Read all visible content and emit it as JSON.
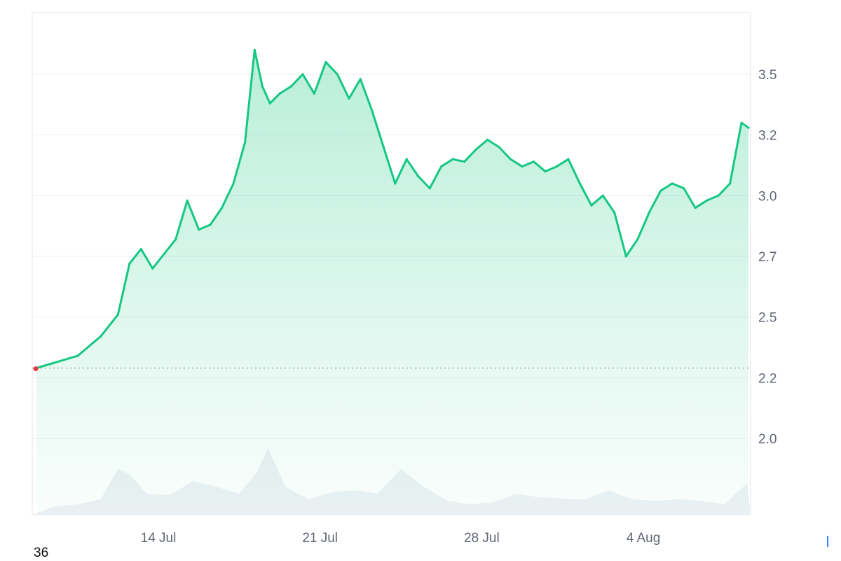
{
  "chart_data": {
    "type": "area",
    "title": "",
    "xlabel": "",
    "ylabel": "",
    "x_range": [
      "2024-07-09",
      "2024-08-08"
    ],
    "ylim": [
      1.75,
      3.75
    ],
    "y_ticks": [
      "2.0",
      "2.2",
      "2.5",
      "2.7",
      "3.0",
      "3.2",
      "3.5"
    ],
    "y_tick_values": [
      2.0,
      2.25,
      2.5,
      2.75,
      3.0,
      3.25,
      3.5
    ],
    "x_ticks": [
      {
        "label": "14 Jul",
        "date": "2024-07-14"
      },
      {
        "label": "21 Jul",
        "date": "2024-07-21"
      },
      {
        "label": "28 Jul",
        "date": "2024-07-28"
      },
      {
        "label": "4 Aug",
        "date": "2024-08-04"
      }
    ],
    "baseline_value": 2.29,
    "grid": true,
    "legend": "none",
    "price_series": {
      "x": [
        "2024-07-09",
        "2024-07-10",
        "2024-07-11",
        "2024-07-12",
        "2024-07-12",
        "2024-07-13",
        "2024-07-13",
        "2024-07-14",
        "2024-07-14",
        "2024-07-15",
        "2024-07-15",
        "2024-07-16",
        "2024-07-16",
        "2024-07-17",
        "2024-07-17",
        "2024-07-18",
        "2024-07-18",
        "2024-07-18",
        "2024-07-19",
        "2024-07-19",
        "2024-07-20",
        "2024-07-20",
        "2024-07-21",
        "2024-07-21",
        "2024-07-22",
        "2024-07-22",
        "2024-07-23",
        "2024-07-23",
        "2024-07-24",
        "2024-07-24",
        "2024-07-25",
        "2024-07-25",
        "2024-07-26",
        "2024-07-26",
        "2024-07-27",
        "2024-07-27",
        "2024-07-28",
        "2024-07-28",
        "2024-07-29",
        "2024-07-29",
        "2024-07-30",
        "2024-07-30",
        "2024-07-31",
        "2024-07-31",
        "2024-08-01",
        "2024-08-01",
        "2024-08-02",
        "2024-08-02",
        "2024-08-03",
        "2024-08-03",
        "2024-08-04",
        "2024-08-04",
        "2024-08-05",
        "2024-08-05",
        "2024-08-06",
        "2024-08-06",
        "2024-08-07",
        "2024-08-07",
        "2024-08-08",
        "2024-08-08"
      ],
      "y": [
        2.29,
        2.34,
        2.42,
        2.51,
        2.72,
        2.78,
        2.7,
        2.76,
        2.82,
        2.98,
        2.86,
        2.88,
        2.95,
        3.05,
        3.22,
        3.6,
        3.45,
        3.38,
        3.42,
        3.45,
        3.5,
        3.42,
        3.55,
        3.5,
        3.4,
        3.48,
        3.35,
        3.2,
        3.05,
        3.15,
        3.08,
        3.03,
        3.12,
        3.15,
        3.14,
        3.19,
        3.23,
        3.2,
        3.15,
        3.12,
        3.14,
        3.1,
        3.12,
        3.15,
        3.05,
        2.96,
        3.0,
        2.93,
        2.75,
        2.82,
        2.93,
        3.02,
        3.05,
        3.03,
        2.95,
        2.98,
        3.0,
        3.05,
        3.3,
        3.28
      ]
    },
    "volume_series": {
      "x": [
        "2024-07-09",
        "2024-07-10",
        "2024-07-11",
        "2024-07-12",
        "2024-07-12",
        "2024-07-13",
        "2024-07-14",
        "2024-07-15",
        "2024-07-16",
        "2024-07-17",
        "2024-07-18",
        "2024-07-18",
        "2024-07-19",
        "2024-07-20",
        "2024-07-21",
        "2024-07-22",
        "2024-07-23",
        "2024-07-24",
        "2024-07-25",
        "2024-07-26",
        "2024-07-27",
        "2024-07-28",
        "2024-07-29",
        "2024-07-30",
        "2024-07-31",
        "2024-08-01",
        "2024-08-02",
        "2024-08-03",
        "2024-08-04",
        "2024-08-05",
        "2024-08-06",
        "2024-08-07",
        "2024-08-08"
      ],
      "relative": [
        0.12,
        0.15,
        0.22,
        0.65,
        0.58,
        0.3,
        0.28,
        0.48,
        0.4,
        0.3,
        0.6,
        0.95,
        0.4,
        0.22,
        0.32,
        0.35,
        0.3,
        0.65,
        0.4,
        0.2,
        0.15,
        0.18,
        0.3,
        0.25,
        0.23,
        0.22,
        0.35,
        0.22,
        0.2,
        0.22,
        0.2,
        0.15,
        0.45
      ]
    }
  },
  "footer": {
    "corner_label": "36"
  },
  "colors": {
    "line": "#16c784",
    "baseline_marker": "#ea3943",
    "volume": "#eef1f5",
    "grid": "#eceef2"
  }
}
